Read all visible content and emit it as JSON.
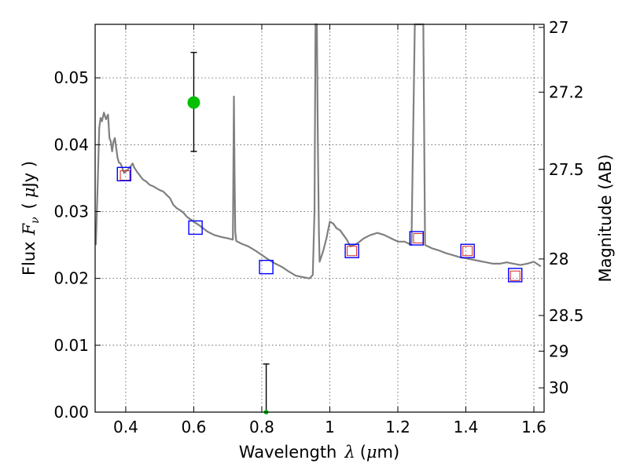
{
  "chart_data": {
    "type": "scatter",
    "xlabel_prefix": "Wavelength",
    "xlabel_symbol": "λ",
    "xlabel_unit_open": "(",
    "xlabel_unit_mu": "μ",
    "xlabel_unit_rest": "m)",
    "ylabel_prefix": "Flux",
    "ylabel_symbol": "F",
    "ylabel_symbol_sub": "ν",
    "ylabel_unit_open": "(",
    "ylabel_unit_mu": "μ",
    "ylabel_unit_rest": "Jy )",
    "y2label": "Magnitude (AB)",
    "xlim": [
      0.31,
      1.63
    ],
    "ylim": [
      0.0,
      0.058
    ],
    "grid": true,
    "x_ticks": [
      0.4,
      0.6,
      0.8,
      1.0,
      1.2,
      1.4,
      1.6
    ],
    "x_tick_labels": [
      "0.4",
      "0.6",
      "0.8",
      "1",
      "1.2",
      "1.4",
      "1.6"
    ],
    "y_ticks": [
      0.0,
      0.01,
      0.02,
      0.03,
      0.04,
      0.05
    ],
    "y_tick_labels": [
      "0.00",
      "0.01",
      "0.02",
      "0.03",
      "0.04",
      "0.05"
    ],
    "y2_ticks": [
      {
        "mag": 27.0,
        "label": "27"
      },
      {
        "mag": 27.2,
        "label": "27.2"
      },
      {
        "mag": 27.5,
        "label": "27.5"
      },
      {
        "mag": 28.0,
        "label": "28"
      },
      {
        "mag": 28.5,
        "label": "28.5"
      },
      {
        "mag": 29.0,
        "label": "29"
      },
      {
        "mag": 30.0,
        "label": "30"
      }
    ],
    "series": [
      {
        "name": "model-sed",
        "kind": "line",
        "color": "#808080",
        "x": [
          0.312,
          0.318,
          0.322,
          0.326,
          0.33,
          0.336,
          0.342,
          0.348,
          0.352,
          0.356,
          0.36,
          0.364,
          0.368,
          0.372,
          0.376,
          0.38,
          0.385,
          0.39,
          0.395,
          0.4,
          0.405,
          0.41,
          0.415,
          0.42,
          0.425,
          0.43,
          0.435,
          0.44,
          0.45,
          0.46,
          0.47,
          0.48,
          0.49,
          0.5,
          0.51,
          0.52,
          0.53,
          0.54,
          0.55,
          0.56,
          0.57,
          0.58,
          0.6,
          0.62,
          0.64,
          0.66,
          0.68,
          0.7,
          0.715,
          0.718,
          0.72,
          0.722,
          0.725,
          0.74,
          0.76,
          0.78,
          0.8,
          0.82,
          0.84,
          0.86,
          0.88,
          0.9,
          0.92,
          0.94,
          0.95,
          0.955,
          0.958,
          0.96,
          0.962,
          0.965,
          0.968,
          0.97,
          0.98,
          0.99,
          1.0,
          1.01,
          1.02,
          1.03,
          1.04,
          1.05,
          1.06,
          1.08,
          1.1,
          1.12,
          1.14,
          1.16,
          1.18,
          1.2,
          1.22,
          1.24,
          1.25,
          1.255,
          1.26,
          1.265,
          1.27,
          1.275,
          1.28,
          1.3,
          1.32,
          1.34,
          1.36,
          1.38,
          1.4,
          1.42,
          1.44,
          1.46,
          1.48,
          1.5,
          1.52,
          1.54,
          1.56,
          1.58,
          1.6,
          1.62
        ],
        "y": [
          0.025,
          0.035,
          0.0425,
          0.044,
          0.0435,
          0.0448,
          0.0438,
          0.0445,
          0.041,
          0.0405,
          0.039,
          0.0405,
          0.041,
          0.0395,
          0.038,
          0.0373,
          0.0372,
          0.0365,
          0.0358,
          0.036,
          0.0362,
          0.0365,
          0.0368,
          0.0372,
          0.0366,
          0.0362,
          0.0358,
          0.0355,
          0.0348,
          0.0345,
          0.034,
          0.0338,
          0.0335,
          0.0332,
          0.033,
          0.0325,
          0.032,
          0.031,
          0.0305,
          0.0302,
          0.0298,
          0.0292,
          0.0285,
          0.0278,
          0.027,
          0.0265,
          0.0262,
          0.026,
          0.0258,
          0.0472,
          0.035,
          0.027,
          0.0256,
          0.0252,
          0.0248,
          0.0242,
          0.0235,
          0.0228,
          0.0222,
          0.0217,
          0.021,
          0.0204,
          0.0202,
          0.02,
          0.0205,
          0.03,
          0.058,
          0.058,
          0.058,
          0.04,
          0.027,
          0.0225,
          0.024,
          0.026,
          0.0285,
          0.0282,
          0.0275,
          0.0272,
          0.0265,
          0.0258,
          0.0248,
          0.0252,
          0.026,
          0.0265,
          0.0268,
          0.0265,
          0.026,
          0.0255,
          0.0255,
          0.025,
          0.058,
          0.058,
          0.058,
          0.058,
          0.058,
          0.058,
          0.025,
          0.0245,
          0.0242,
          0.0238,
          0.0235,
          0.0232,
          0.023,
          0.0228,
          0.0226,
          0.0224,
          0.0222,
          0.0222,
          0.0224,
          0.0222,
          0.022,
          0.0222,
          0.0225,
          0.0218
        ]
      },
      {
        "name": "model-photometry",
        "kind": "open-square-small",
        "color": "#d62728",
        "x": [
          0.398,
          1.065,
          1.26,
          1.405,
          1.545
        ],
        "y": [
          0.0354,
          0.0241,
          0.026,
          0.0241,
          0.0204
        ]
      },
      {
        "name": "observed-photometry",
        "kind": "open-square-large",
        "color": "#0000ff",
        "x": [
          0.395,
          0.605,
          0.813,
          1.065,
          1.255,
          1.405,
          1.545
        ],
        "y": [
          0.0356,
          0.0276,
          0.0217,
          0.0241,
          0.026,
          0.0241,
          0.0205
        ]
      },
      {
        "name": "detection",
        "kind": "filled-circle-errorbar",
        "color": "#00c000",
        "x": [
          0.6,
          0.813
        ],
        "y": [
          0.0463,
          0.0
        ],
        "yerr_low": [
          0.039,
          0.0
        ],
        "yerr_high": [
          0.0538,
          0.0072
        ]
      }
    ]
  }
}
